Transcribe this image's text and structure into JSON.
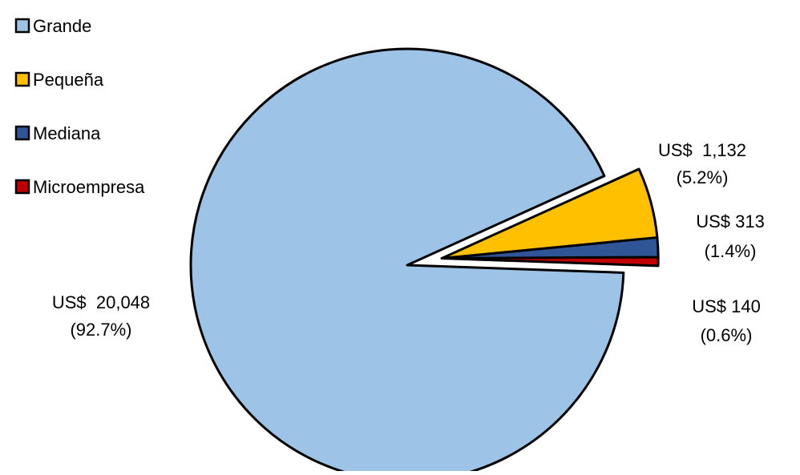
{
  "chart_data": {
    "type": "pie",
    "title": "",
    "legend": {
      "placement": "top-left",
      "entries": [
        "Grande",
        "Pequeña",
        "Mediana",
        "Microempresa"
      ]
    },
    "series": [
      {
        "values": [
          {
            "category": "Grande",
            "value": 20048,
            "percent": 92.7,
            "label_value": "US$  20,048",
            "label_percent": "(92.7%)",
            "color": "#9DC3E6"
          },
          {
            "category": "Pequeña",
            "value": 1132,
            "percent": 5.2,
            "label_value": "US$  1,132",
            "label_percent": "(5.2%)",
            "color": "#FFC000"
          },
          {
            "category": "Mediana",
            "value": 313,
            "percent": 1.4,
            "label_value": "US$ 313",
            "label_percent": "(1.4%)",
            "color": "#2F5597"
          },
          {
            "category": "Microempresa",
            "value": 140,
            "percent": 0.6,
            "label_value": "US$ 140",
            "label_percent": "(0.6%)",
            "color": "#C00000"
          }
        ]
      }
    ],
    "exploded": [
      "Pequeña",
      "Mediana",
      "Microempresa"
    ],
    "border_color": "#000000"
  }
}
